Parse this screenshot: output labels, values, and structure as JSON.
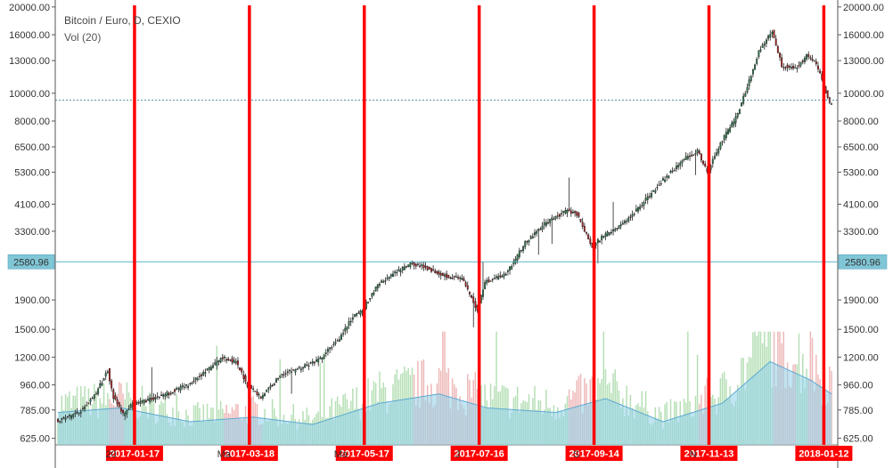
{
  "chart_data": {
    "type": "candlestick",
    "title": "Bitcoin / Euro, D, CEXIO",
    "volume_label": "Vol (20)",
    "y_scale": "log",
    "ylim": [
      560,
      21000
    ],
    "y_ticks": [
      "20000.00",
      "16000.00",
      "13000.00",
      "10000.00",
      "8000.00",
      "6500.00",
      "5300.00",
      "4100.00",
      "3300.00",
      "1900.00",
      "1500.00",
      "1200.00",
      "960.00",
      "785.00",
      "625.00"
    ],
    "y_tick_values": [
      20000,
      16000,
      13000,
      10000,
      8000,
      6500,
      5300,
      4100,
      3300,
      1900,
      1500,
      1200,
      960,
      785,
      625
    ],
    "current_price": "2580.96",
    "current_price_value": 2580.96,
    "dashed_level_value": 9450,
    "x_range": [
      "2016-12-08",
      "2018-01-16"
    ],
    "x_axis_partial_labels": [
      {
        "text": "20",
        "date": "2017-01-01"
      },
      {
        "text": "Ma",
        "date": "2017-03-01"
      },
      {
        "text": "Ma",
        "date": "2017-05-01"
      },
      {
        "text": "J",
        "date": "2017-07-01"
      },
      {
        "text": "S",
        "date": "2017-09-01"
      },
      {
        "text": "N",
        "date": "2017-11-01"
      }
    ],
    "vertical_markers": [
      {
        "label": "2017-01-17",
        "date": "2017-01-17"
      },
      {
        "label": "2017-03-18",
        "date": "2017-03-18"
      },
      {
        "label": "2017-05-17",
        "date": "2017-05-17"
      },
      {
        "label": "2017-07-16",
        "date": "2017-07-16"
      },
      {
        "label": "2017-09-14",
        "date": "2017-09-14"
      },
      {
        "label": "2017-11-13",
        "date": "2017-11-13"
      },
      {
        "label": "2018-01-12",
        "date": "2018-01-12"
      }
    ],
    "price_path": [
      {
        "date": "2016-12-08",
        "close": 720
      },
      {
        "date": "2016-12-15",
        "close": 745
      },
      {
        "date": "2016-12-22",
        "close": 790
      },
      {
        "date": "2016-12-29",
        "close": 900
      },
      {
        "date": "2017-01-04",
        "close": 1080
      },
      {
        "date": "2017-01-07",
        "close": 870
      },
      {
        "date": "2017-01-12",
        "close": 760
      },
      {
        "date": "2017-01-17",
        "close": 820
      },
      {
        "date": "2017-01-25",
        "close": 850
      },
      {
        "date": "2017-02-05",
        "close": 900
      },
      {
        "date": "2017-02-15",
        "close": 960
      },
      {
        "date": "2017-02-25",
        "close": 1080
      },
      {
        "date": "2017-03-05",
        "close": 1200
      },
      {
        "date": "2017-03-12",
        "close": 1150
      },
      {
        "date": "2017-03-18",
        "close": 960
      },
      {
        "date": "2017-03-25",
        "close": 870
      },
      {
        "date": "2017-04-05",
        "close": 1050
      },
      {
        "date": "2017-04-15",
        "close": 1100
      },
      {
        "date": "2017-04-25",
        "close": 1180
      },
      {
        "date": "2017-05-05",
        "close": 1400
      },
      {
        "date": "2017-05-12",
        "close": 1650
      },
      {
        "date": "2017-05-17",
        "close": 1750
      },
      {
        "date": "2017-05-25",
        "close": 2150
      },
      {
        "date": "2017-06-05",
        "close": 2400
      },
      {
        "date": "2017-06-12",
        "close": 2550
      },
      {
        "date": "2017-06-20",
        "close": 2450
      },
      {
        "date": "2017-06-30",
        "close": 2300
      },
      {
        "date": "2017-07-08",
        "close": 2250
      },
      {
        "date": "2017-07-16",
        "close": 1750
      },
      {
        "date": "2017-07-20",
        "close": 2200
      },
      {
        "date": "2017-07-31",
        "close": 2350
      },
      {
        "date": "2017-08-10",
        "close": 3000
      },
      {
        "date": "2017-08-20",
        "close": 3500
      },
      {
        "date": "2017-09-01",
        "close": 3900
      },
      {
        "date": "2017-09-06",
        "close": 3800
      },
      {
        "date": "2017-09-14",
        "close": 2900
      },
      {
        "date": "2017-09-20",
        "close": 3200
      },
      {
        "date": "2017-09-30",
        "close": 3500
      },
      {
        "date": "2017-10-10",
        "close": 4100
      },
      {
        "date": "2017-10-20",
        "close": 4900
      },
      {
        "date": "2017-11-01",
        "close": 5900
      },
      {
        "date": "2017-11-08",
        "close": 6300
      },
      {
        "date": "2017-11-13",
        "close": 5300
      },
      {
        "date": "2017-11-20",
        "close": 6700
      },
      {
        "date": "2017-11-28",
        "close": 8200
      },
      {
        "date": "2017-12-05",
        "close": 11000
      },
      {
        "date": "2017-12-10",
        "close": 14000
      },
      {
        "date": "2017-12-17",
        "close": 16500
      },
      {
        "date": "2017-12-22",
        "close": 12500
      },
      {
        "date": "2017-12-29",
        "close": 12200
      },
      {
        "date": "2018-01-04",
        "close": 13500
      },
      {
        "date": "2018-01-08",
        "close": 13000
      },
      {
        "date": "2018-01-12",
        "close": 11200
      },
      {
        "date": "2018-01-16",
        "close": 9200
      }
    ],
    "volume_level_path": [
      {
        "date": "2016-12-08",
        "rel": 0.35
      },
      {
        "date": "2017-01-10",
        "rel": 0.4
      },
      {
        "date": "2017-02-15",
        "rel": 0.25
      },
      {
        "date": "2017-03-20",
        "rel": 0.3
      },
      {
        "date": "2017-04-20",
        "rel": 0.22
      },
      {
        "date": "2017-05-25",
        "rel": 0.45
      },
      {
        "date": "2017-06-25",
        "rel": 0.55
      },
      {
        "date": "2017-07-20",
        "rel": 0.4
      },
      {
        "date": "2017-08-25",
        "rel": 0.35
      },
      {
        "date": "2017-09-20",
        "rel": 0.5
      },
      {
        "date": "2017-10-20",
        "rel": 0.25
      },
      {
        "date": "2017-11-20",
        "rel": 0.45
      },
      {
        "date": "2017-12-15",
        "rel": 0.9
      },
      {
        "date": "2018-01-05",
        "rel": 0.7
      },
      {
        "date": "2018-01-16",
        "rel": 0.55
      }
    ]
  },
  "colors": {
    "up_body": "#2e7d4f",
    "down_body": "#b22222",
    "wick": "#222222",
    "marker_line": "#ff0000",
    "marker_label_bg": "#ff0000",
    "price_line": "#5bb5c9",
    "price_tag_bg": "#7fc6d6",
    "volume_area": "#8ecfe8",
    "volume_up": "#9ed49e",
    "volume_down": "#e8a0a0",
    "grid_border": "#555555"
  }
}
